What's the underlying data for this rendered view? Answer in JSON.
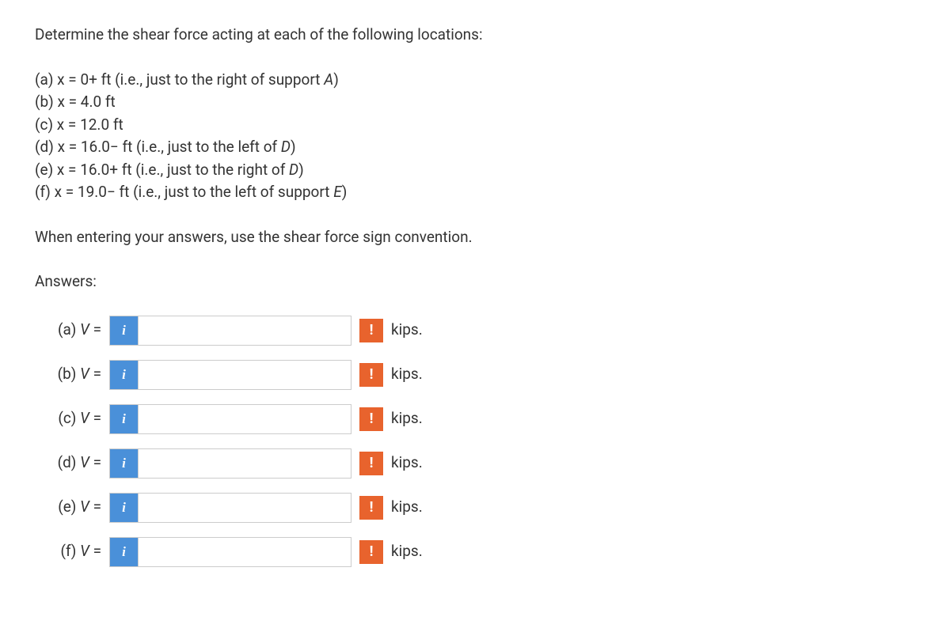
{
  "question": "Determine the shear force acting at each of the following locations:",
  "locations": [
    {
      "label": "(a)",
      "text": "x = 0+ ft (i.e., just to the right of support ",
      "ital": "A",
      "suffix": ")"
    },
    {
      "label": "(b)",
      "text": "x = 4.0 ft",
      "ital": "",
      "suffix": ""
    },
    {
      "label": "(c)",
      "text": "x = 12.0 ft",
      "ital": "",
      "suffix": ""
    },
    {
      "label": "(d)",
      "text": "x = 16.0− ft (i.e., just to the left of ",
      "ital": "D",
      "suffix": ")"
    },
    {
      "label": "(e)",
      "text": "x = 16.0+ ft (i.e., just to the right of ",
      "ital": "D",
      "suffix": ")"
    },
    {
      "label": "(f)",
      "text": "x = 19.0− ft (i.e., just to the left of support ",
      "ital": "E",
      "suffix": ")"
    }
  ],
  "instruction": "When entering your answers, use the shear force sign convention.",
  "answers_heading": "Answers:",
  "answers": [
    {
      "label": "(a) ",
      "var": "V",
      "eq": " = ",
      "value": "",
      "unit": "kips."
    },
    {
      "label": "(b) ",
      "var": "V",
      "eq": " = ",
      "value": "",
      "unit": "kips."
    },
    {
      "label": "(c) ",
      "var": "V",
      "eq": " = ",
      "value": "",
      "unit": "kips."
    },
    {
      "label": "(d) ",
      "var": "V",
      "eq": " = ",
      "value": "",
      "unit": "kips."
    },
    {
      "label": "(e) ",
      "var": "V",
      "eq": " = ",
      "value": "",
      "unit": "kips."
    },
    {
      "label": "(f) ",
      "var": "V",
      "eq": " = ",
      "value": "",
      "unit": "kips."
    }
  ],
  "icons": {
    "info": "i",
    "warning": "!"
  },
  "colors": {
    "info_bg": "#4a90d9",
    "warning_bg": "#e8632d",
    "text": "#333333",
    "border": "#cccccc"
  }
}
